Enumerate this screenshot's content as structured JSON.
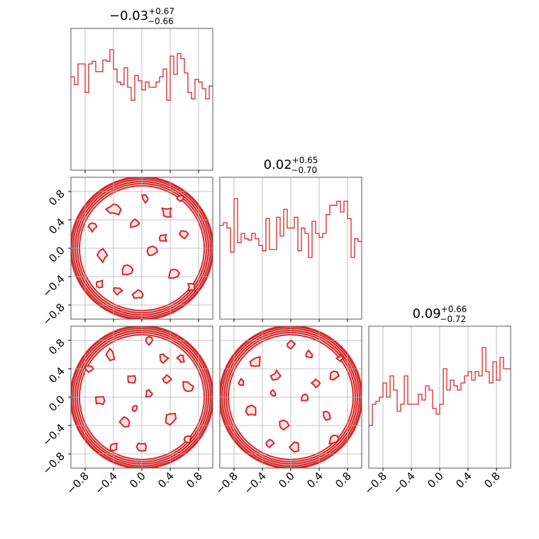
{
  "chart_data": {
    "type": "corner",
    "axis_range": [
      -1,
      1
    ],
    "tick_values": [
      -0.8,
      -0.4,
      0.0,
      0.4,
      0.8
    ],
    "tick_labels": [
      "−0.8",
      "−0.4",
      "0.0",
      "0.4",
      "0.8"
    ],
    "grid": true,
    "color": "#d62728",
    "parameters": [
      {
        "title_median": "−0.03",
        "title_plus": "+0.67",
        "title_minus": "−0.66",
        "hist_x_start": -1.0,
        "hist_bin_width": 0.05,
        "hist_values": [
          0.72,
          0.66,
          0.82,
          0.82,
          0.6,
          0.82,
          0.84,
          0.76,
          0.76,
          0.85,
          0.84,
          0.93,
          0.78,
          0.68,
          0.66,
          0.79,
          0.64,
          0.54,
          0.73,
          0.69,
          0.62,
          0.68,
          0.64,
          0.64,
          0.68,
          0.72,
          0.78,
          0.54,
          0.88,
          0.74,
          0.9,
          0.86,
          0.75,
          0.6,
          0.55,
          0.7,
          0.68,
          0.63,
          0.55,
          0.65
        ]
      },
      {
        "title_median": "0.02",
        "title_plus": "+0.65",
        "title_minus": "−0.70",
        "hist_x_start": -1.0,
        "hist_bin_width": 0.05,
        "hist_values": [
          0.7,
          0.72,
          0.68,
          0.5,
          0.9,
          0.57,
          0.64,
          0.6,
          0.59,
          0.64,
          0.6,
          0.55,
          0.51,
          0.75,
          0.52,
          0.52,
          0.76,
          0.62,
          0.82,
          0.68,
          0.68,
          0.76,
          0.51,
          0.68,
          0.64,
          0.46,
          0.73,
          0.64,
          0.61,
          0.64,
          0.78,
          0.85,
          0.85,
          0.88,
          0.8,
          0.88,
          0.75,
          0.46,
          0.6,
          0.58
        ]
      },
      {
        "title_median": "0.09",
        "title_plus": "+0.66",
        "title_minus": "−0.72",
        "hist_x_start": -1.0,
        "hist_bin_width": 0.05,
        "hist_values": [
          0.3,
          0.45,
          0.47,
          0.5,
          0.6,
          0.5,
          0.65,
          0.55,
          0.4,
          0.45,
          0.65,
          0.45,
          0.45,
          0.45,
          0.52,
          0.48,
          0.58,
          0.55,
          0.42,
          0.38,
          0.45,
          0.7,
          0.55,
          0.62,
          0.58,
          0.55,
          0.6,
          0.65,
          0.68,
          0.62,
          0.68,
          0.65,
          0.85,
          0.68,
          0.6,
          0.75,
          0.62,
          0.78,
          0.7,
          0.7
        ]
      }
    ],
    "contour_panels": [
      {
        "row": 1,
        "col": 0,
        "support": "unit-disk",
        "blobs": [
          [
            -0.4,
            0.55,
            0.08
          ],
          [
            -0.1,
            0.35,
            0.06
          ],
          [
            0.35,
            0.5,
            0.07
          ],
          [
            0.6,
            0.2,
            0.06
          ],
          [
            -0.55,
            -0.1,
            0.07
          ],
          [
            -0.2,
            -0.3,
            0.08
          ],
          [
            0.15,
            -0.05,
            0.06
          ],
          [
            0.45,
            -0.35,
            0.07
          ],
          [
            -0.05,
            -0.65,
            0.06
          ],
          [
            0.3,
            0.15,
            0.05
          ],
          [
            -0.7,
            0.3,
            0.05
          ],
          [
            0.7,
            -0.55,
            0.05
          ],
          [
            -0.35,
            -0.6,
            0.06
          ],
          [
            0.05,
            0.7,
            0.05
          ],
          [
            0.55,
            0.7,
            0.04
          ],
          [
            -0.6,
            -0.5,
            0.05
          ]
        ]
      },
      {
        "row": 2,
        "col": 0,
        "support": "unit-disk",
        "blobs": [
          [
            -0.45,
            0.6,
            0.07
          ],
          [
            -0.15,
            0.25,
            0.06
          ],
          [
            0.3,
            0.55,
            0.06
          ],
          [
            0.65,
            0.15,
            0.07
          ],
          [
            -0.6,
            -0.05,
            0.06
          ],
          [
            -0.25,
            -0.35,
            0.07
          ],
          [
            0.1,
            0.05,
            0.05
          ],
          [
            0.4,
            -0.3,
            0.08
          ],
          [
            0.0,
            -0.7,
            0.06
          ],
          [
            0.35,
            0.25,
            0.05
          ],
          [
            -0.75,
            0.4,
            0.05
          ],
          [
            0.65,
            -0.6,
            0.05
          ],
          [
            -0.4,
            -0.7,
            0.05
          ],
          [
            0.1,
            0.8,
            0.05
          ],
          [
            -0.1,
            -0.15,
            0.04
          ],
          [
            0.55,
            0.55,
            0.05
          ]
        ]
      },
      {
        "row": 2,
        "col": 1,
        "support": "unit-disk",
        "blobs": [
          [
            -0.5,
            0.5,
            0.07
          ],
          [
            -0.2,
            0.3,
            0.06
          ],
          [
            0.25,
            0.6,
            0.05
          ],
          [
            0.6,
            0.3,
            0.06
          ],
          [
            -0.55,
            -0.2,
            0.07
          ],
          [
            -0.1,
            -0.4,
            0.06
          ],
          [
            0.2,
            0.0,
            0.05
          ],
          [
            0.5,
            -0.25,
            0.06
          ],
          [
            0.05,
            -0.7,
            0.06
          ],
          [
            0.35,
            0.2,
            0.05
          ],
          [
            -0.7,
            0.2,
            0.05
          ],
          [
            0.6,
            -0.6,
            0.06
          ],
          [
            -0.3,
            -0.65,
            0.05
          ],
          [
            0.0,
            0.75,
            0.05
          ],
          [
            -0.25,
            0.05,
            0.04
          ],
          [
            0.7,
            0.55,
            0.04
          ]
        ]
      }
    ]
  }
}
